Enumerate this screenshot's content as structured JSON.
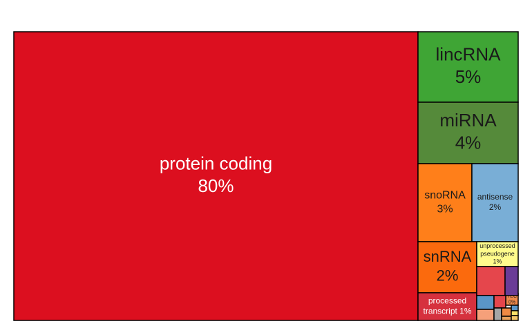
{
  "chart_data": {
    "type": "treemap",
    "title": "",
    "items": [
      {
        "name": "protein coding",
        "value": "80%",
        "color": "#dc0f1f",
        "text_color": "#ffffff",
        "size": "xl"
      },
      {
        "name": "lincRNA",
        "value": "5%",
        "color": "#3fa535",
        "text_color": "#1a1a1a",
        "size": "l"
      },
      {
        "name": "miRNA",
        "value": "4%",
        "color": "#558a3a",
        "text_color": "#1a1a1a",
        "size": "l"
      },
      {
        "name": "snoRNA",
        "value": "3%",
        "color": "#ff7f1a",
        "text_color": "#1a1a1a",
        "size": "m"
      },
      {
        "name": "antisense",
        "value": "2%",
        "color": "#79aed6",
        "text_color": "#1a1a1a",
        "size": "s"
      },
      {
        "name": "snRNA",
        "value": "2%",
        "color": "#fb6a0d",
        "text_color": "#1a1a1a",
        "size": "ml"
      },
      {
        "name": "unprocessed pseudogene",
        "value": "1%",
        "color": "#fffb8c",
        "text_color": "#1a1a1a",
        "size": "xs"
      },
      {
        "name": "processed transcript",
        "value": "1%",
        "color": "#d6313e",
        "text_color": "#ffffff",
        "size": "sm"
      },
      {
        "name": "TEC",
        "value": "0%",
        "color": "#f08a4b",
        "text_color": "#1a1a1a",
        "size": "xxs"
      },
      {
        "name": "",
        "value": "",
        "color": "#e5464c"
      },
      {
        "name": "",
        "value": "",
        "color": "#6a3c97"
      },
      {
        "name": "",
        "value": "",
        "color": "#5a96c8"
      },
      {
        "name": "",
        "value": "",
        "color": "#e5464c"
      },
      {
        "name": "",
        "value": "",
        "color": "#f5a07a"
      },
      {
        "name": "",
        "value": "",
        "color": "#a5a5a5"
      },
      {
        "name": "",
        "value": "",
        "color": "#ef8a44"
      },
      {
        "name": "",
        "value": "",
        "color": "#5a96c8"
      },
      {
        "name": "",
        "value": "",
        "color": "#e8a25d"
      },
      {
        "name": "",
        "value": "",
        "color": "#fbe36a"
      },
      {
        "name": "",
        "value": "",
        "color": "#f5c76a"
      }
    ]
  }
}
